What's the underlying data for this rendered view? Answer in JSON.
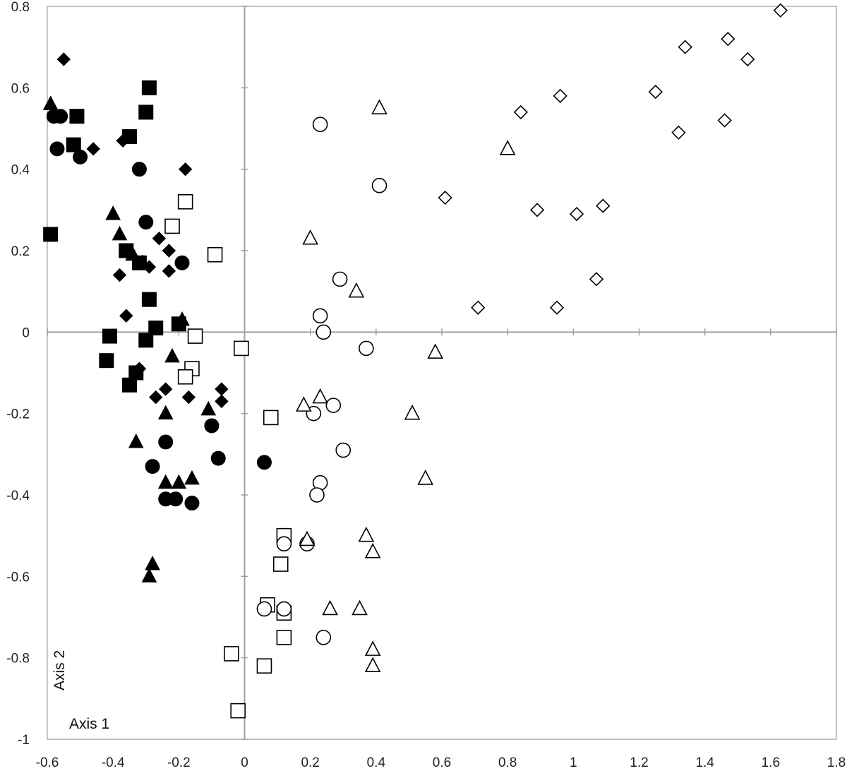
{
  "chart_data": {
    "type": "scatter",
    "title": "",
    "xlabel": "Axis 1",
    "ylabel": "Axis 2",
    "xlim": [
      -0.6,
      1.8
    ],
    "ylim": [
      -1,
      0.8
    ],
    "grid": false,
    "x_ticks": [
      -0.6,
      -0.4,
      -0.2,
      0,
      0.2,
      0.4,
      0.6,
      0.8,
      1,
      1.2,
      1.4,
      1.6,
      1.8
    ],
    "y_ticks": [
      -1,
      -0.8,
      -0.6,
      -0.4,
      -0.2,
      0,
      0.2,
      0.4,
      0.6,
      0.8
    ],
    "x_tick_labels": [
      "-0.6",
      "-0.4",
      "-0.2",
      "0",
      "0.2",
      "0.4",
      "0.6",
      "0.8",
      "1",
      "1.2",
      "1.4",
      "1.6",
      "1.8"
    ],
    "y_tick_labels": [
      "-1",
      "-0.8",
      "-0.6",
      "-0.4",
      "-0.2",
      "0",
      "0.2",
      "0.4",
      "0.6",
      "0.8"
    ],
    "series": [
      {
        "marker": "square",
        "filled": true,
        "points": [
          [
            -0.51,
            0.53
          ],
          [
            -0.52,
            0.46
          ],
          [
            -0.29,
            0.6
          ],
          [
            -0.3,
            0.54
          ],
          [
            -0.35,
            0.48
          ],
          [
            -0.59,
            0.24
          ],
          [
            -0.36,
            0.2
          ],
          [
            -0.32,
            0.17
          ],
          [
            -0.29,
            0.08
          ],
          [
            -0.27,
            0.01
          ],
          [
            -0.41,
            -0.01
          ],
          [
            -0.42,
            -0.07
          ],
          [
            -0.3,
            -0.02
          ],
          [
            -0.33,
            -0.1
          ],
          [
            -0.35,
            -0.13
          ],
          [
            -0.2,
            0.02
          ]
        ]
      },
      {
        "marker": "diamond",
        "filled": true,
        "points": [
          [
            -0.55,
            0.67
          ],
          [
            -0.46,
            0.45
          ],
          [
            -0.37,
            0.47
          ],
          [
            -0.18,
            0.4
          ],
          [
            -0.26,
            0.23
          ],
          [
            -0.23,
            0.2
          ],
          [
            -0.23,
            0.15
          ],
          [
            -0.29,
            0.16
          ],
          [
            -0.38,
            0.14
          ],
          [
            -0.36,
            0.04
          ],
          [
            -0.32,
            -0.09
          ],
          [
            -0.24,
            -0.14
          ],
          [
            -0.27,
            -0.16
          ],
          [
            -0.17,
            -0.16
          ],
          [
            -0.07,
            -0.14
          ],
          [
            -0.07,
            -0.17
          ]
        ]
      },
      {
        "marker": "circle",
        "filled": true,
        "points": [
          [
            -0.58,
            0.53
          ],
          [
            -0.56,
            0.53
          ],
          [
            -0.57,
            0.45
          ],
          [
            -0.5,
            0.43
          ],
          [
            -0.32,
            0.4
          ],
          [
            -0.3,
            0.27
          ],
          [
            -0.19,
            0.17
          ],
          [
            -0.24,
            -0.27
          ],
          [
            -0.28,
            -0.33
          ],
          [
            -0.1,
            -0.23
          ],
          [
            -0.08,
            -0.31
          ],
          [
            0.06,
            -0.32
          ],
          [
            -0.24,
            -0.41
          ],
          [
            -0.21,
            -0.41
          ],
          [
            -0.16,
            -0.42
          ]
        ]
      },
      {
        "marker": "triangle",
        "filled": true,
        "points": [
          [
            -0.59,
            0.56
          ],
          [
            -0.4,
            0.29
          ],
          [
            -0.38,
            0.24
          ],
          [
            -0.34,
            0.19
          ],
          [
            -0.31,
            0.17
          ],
          [
            -0.19,
            0.03
          ],
          [
            -0.22,
            -0.06
          ],
          [
            -0.24,
            -0.2
          ],
          [
            -0.33,
            -0.27
          ],
          [
            -0.11,
            -0.19
          ],
          [
            -0.24,
            -0.37
          ],
          [
            -0.2,
            -0.37
          ],
          [
            -0.16,
            -0.36
          ],
          [
            -0.28,
            -0.57
          ],
          [
            -0.29,
            -0.6
          ]
        ]
      },
      {
        "marker": "square",
        "filled": false,
        "points": [
          [
            -0.18,
            0.32
          ],
          [
            -0.22,
            0.26
          ],
          [
            -0.09,
            0.19
          ],
          [
            -0.15,
            -0.01
          ],
          [
            -0.01,
            -0.04
          ],
          [
            -0.16,
            -0.09
          ],
          [
            -0.18,
            -0.11
          ],
          [
            0.08,
            -0.21
          ],
          [
            0.12,
            -0.5
          ],
          [
            0.11,
            -0.57
          ],
          [
            0.07,
            -0.67
          ],
          [
            0.12,
            -0.69
          ],
          [
            0.12,
            -0.75
          ],
          [
            -0.04,
            -0.79
          ],
          [
            0.06,
            -0.82
          ],
          [
            -0.02,
            -0.93
          ]
        ]
      },
      {
        "marker": "circle",
        "filled": false,
        "points": [
          [
            0.23,
            0.51
          ],
          [
            0.41,
            0.36
          ],
          [
            0.29,
            0.13
          ],
          [
            0.23,
            0.04
          ],
          [
            0.24,
            0.0
          ],
          [
            0.37,
            -0.04
          ],
          [
            0.27,
            -0.18
          ],
          [
            0.21,
            -0.2
          ],
          [
            0.3,
            -0.29
          ],
          [
            0.23,
            -0.37
          ],
          [
            0.22,
            -0.4
          ],
          [
            0.12,
            -0.52
          ],
          [
            0.19,
            -0.52
          ],
          [
            0.06,
            -0.68
          ],
          [
            0.12,
            -0.68
          ],
          [
            0.24,
            -0.75
          ]
        ]
      },
      {
        "marker": "triangle",
        "filled": false,
        "points": [
          [
            0.41,
            0.55
          ],
          [
            0.8,
            0.45
          ],
          [
            0.2,
            0.23
          ],
          [
            0.34,
            0.1
          ],
          [
            0.58,
            -0.05
          ],
          [
            0.18,
            -0.18
          ],
          [
            0.23,
            -0.16
          ],
          [
            0.51,
            -0.2
          ],
          [
            0.55,
            -0.36
          ],
          [
            0.37,
            -0.5
          ],
          [
            0.39,
            -0.54
          ],
          [
            0.19,
            -0.51
          ],
          [
            0.26,
            -0.68
          ],
          [
            0.35,
            -0.68
          ],
          [
            0.39,
            -0.78
          ],
          [
            0.39,
            -0.82
          ]
        ]
      },
      {
        "marker": "diamond",
        "filled": false,
        "points": [
          [
            1.63,
            0.79
          ],
          [
            1.34,
            0.7
          ],
          [
            1.47,
            0.72
          ],
          [
            1.53,
            0.67
          ],
          [
            1.25,
            0.59
          ],
          [
            0.96,
            0.58
          ],
          [
            0.84,
            0.54
          ],
          [
            1.32,
            0.49
          ],
          [
            1.46,
            0.52
          ],
          [
            0.61,
            0.33
          ],
          [
            0.89,
            0.3
          ],
          [
            1.01,
            0.29
          ],
          [
            1.09,
            0.31
          ],
          [
            1.07,
            0.13
          ],
          [
            0.71,
            0.06
          ],
          [
            0.95,
            0.06
          ]
        ]
      }
    ]
  }
}
